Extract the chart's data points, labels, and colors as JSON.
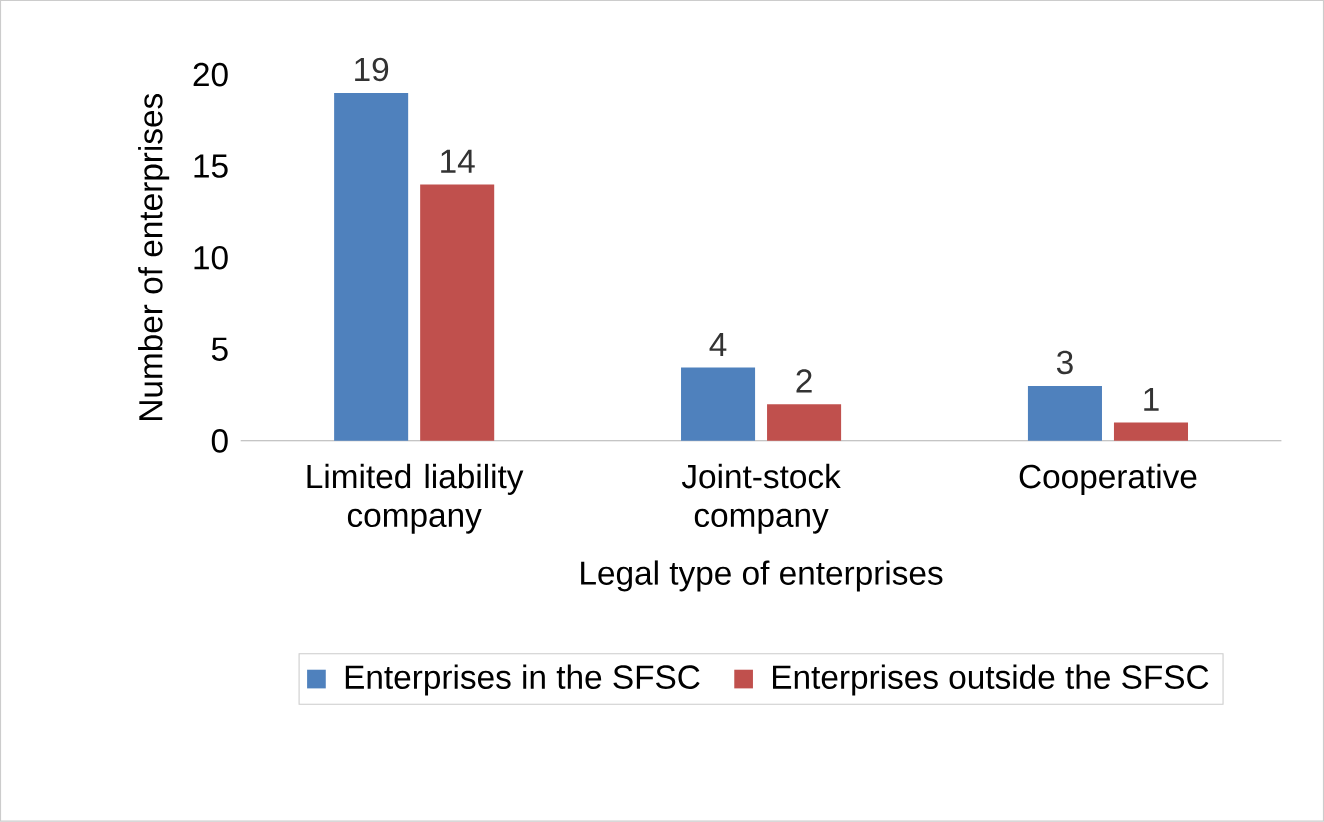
{
  "chart_data": {
    "type": "bar",
    "xlabel": "Legal type of enterprises",
    "ylabel": "Number of enterprises",
    "categories": [
      "Limited liability company",
      "Joint-stock company",
      "Cooperative"
    ],
    "series": [
      {
        "name": "Enterprises in the SFSC",
        "color": "#4f81bd",
        "values": [
          19,
          4,
          3
        ]
      },
      {
        "name": "Enterprises outside the SFSC",
        "color": "#c0504d",
        "values": [
          14,
          2,
          1
        ]
      }
    ],
    "ylim": [
      0,
      20
    ],
    "yticks": [
      0,
      5,
      10,
      15,
      20
    ],
    "data_labels": true,
    "legend": "bottom"
  }
}
